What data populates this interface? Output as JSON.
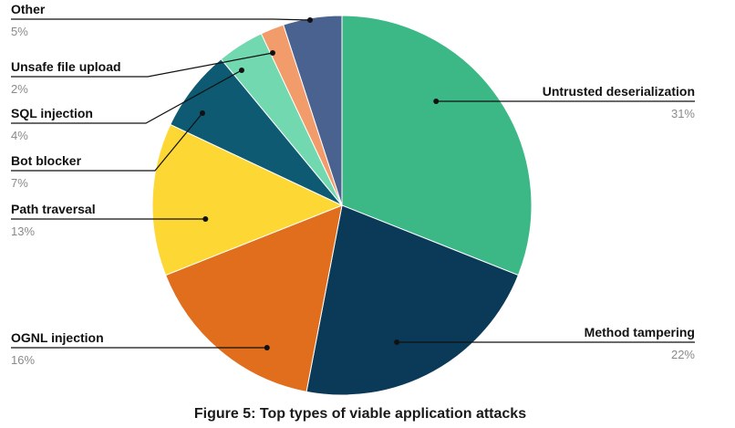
{
  "chart_data": {
    "type": "pie",
    "title": "Figure 5: Top types of viable application attacks",
    "start_angle_deg": 0,
    "direction": "clockwise",
    "slices": [
      {
        "label": "Untrusted deserialization",
        "value": 31,
        "value_label": "31%",
        "color": "#3bb886"
      },
      {
        "label": "Method tampering",
        "value": 22,
        "value_label": "22%",
        "color": "#0b3a59"
      },
      {
        "label": "OGNL injection",
        "value": 16,
        "value_label": "16%",
        "color": "#e06e1c"
      },
      {
        "label": "Path traversal",
        "value": 13,
        "value_label": "13%",
        "color": "#fdd835"
      },
      {
        "label": "Bot blocker",
        "value": 7,
        "value_label": "7%",
        "color": "#0d5a72"
      },
      {
        "label": "SQL injection",
        "value": 4,
        "value_label": "4%",
        "color": "#72d8b0"
      },
      {
        "label": "Unsafe file upload",
        "value": 2,
        "value_label": "2%",
        "color": "#f29c6b"
      },
      {
        "label": "Other",
        "value": 5,
        "value_label": "5%",
        "color": "#4a628f"
      }
    ]
  }
}
